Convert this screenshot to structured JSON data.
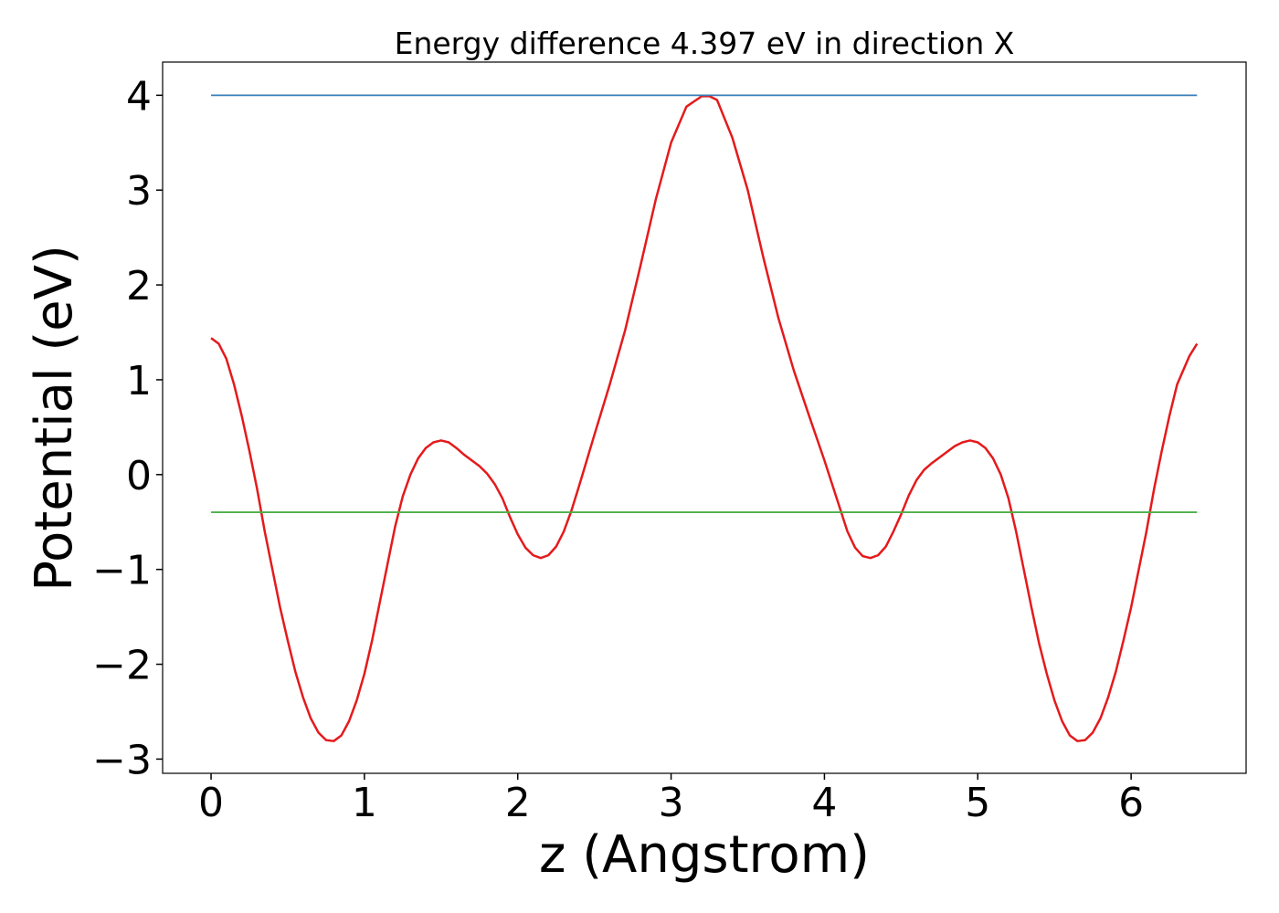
{
  "chart_data": {
    "type": "line",
    "title": "Energy difference 4.397 eV in direction X",
    "xlabel": "z (Angstrom)",
    "ylabel": "Potential (eV)",
    "xlim": [
      -0.316,
      6.75
    ],
    "ylim": [
      -3.15,
      4.35
    ],
    "xticks": [
      0,
      1,
      2,
      3,
      4,
      5,
      6
    ],
    "yticks": [
      {
        "value": -3,
        "label": "−3"
      },
      {
        "value": -2,
        "label": "−2"
      },
      {
        "value": -1,
        "label": "−1"
      },
      0,
      1,
      2,
      3,
      4
    ],
    "grid": false,
    "series": [
      {
        "color": "#e41a1c",
        "x": [
          0,
          0.05,
          0.1,
          0.15,
          0.2,
          0.25,
          0.3,
          0.35,
          0.4,
          0.45,
          0.5,
          0.55,
          0.6,
          0.65,
          0.7,
          0.75,
          0.8,
          0.85,
          0.9,
          0.95,
          1.0,
          1.05,
          1.1,
          1.15,
          1.2,
          1.25,
          1.3,
          1.35,
          1.4,
          1.45,
          1.5,
          1.55,
          1.6,
          1.65,
          1.7,
          1.75,
          1.8,
          1.85,
          1.9,
          1.95,
          2.0,
          2.05,
          2.1,
          2.15,
          2.2,
          2.25,
          2.3,
          2.35,
          2.4,
          2.5,
          2.6,
          2.7,
          2.8,
          2.9,
          3.0,
          3.1,
          3.2,
          3.25,
          3.3,
          3.4,
          3.5,
          3.6,
          3.7,
          3.8,
          3.9,
          4.0,
          4.05,
          4.1,
          4.15,
          4.2,
          4.25,
          4.3,
          4.35,
          4.4,
          4.45,
          4.5,
          4.55,
          4.6,
          4.65,
          4.7,
          4.75,
          4.8,
          4.85,
          4.9,
          4.95,
          5.0,
          5.05,
          5.1,
          5.15,
          5.2,
          5.25,
          5.3,
          5.35,
          5.4,
          5.45,
          5.5,
          5.55,
          5.6,
          5.65,
          5.7,
          5.75,
          5.8,
          5.85,
          5.9,
          5.95,
          6.0,
          6.05,
          6.1,
          6.15,
          6.2,
          6.25,
          6.3,
          6.38,
          6.43
        ],
        "values": [
          1.44,
          1.38,
          1.22,
          0.95,
          0.62,
          0.25,
          -0.15,
          -0.6,
          -1.0,
          -1.4,
          -1.75,
          -2.08,
          -2.35,
          -2.57,
          -2.72,
          -2.8,
          -2.81,
          -2.75,
          -2.6,
          -2.38,
          -2.1,
          -1.75,
          -1.35,
          -0.95,
          -0.55,
          -0.23,
          0.0,
          0.17,
          0.28,
          0.34,
          0.36,
          0.34,
          0.28,
          0.21,
          0.15,
          0.09,
          0.01,
          -0.1,
          -0.25,
          -0.45,
          -0.63,
          -0.77,
          -0.85,
          -0.88,
          -0.85,
          -0.76,
          -0.6,
          -0.38,
          -0.12,
          0.42,
          0.95,
          1.52,
          2.2,
          2.9,
          3.5,
          3.88,
          3.99,
          3.99,
          3.95,
          3.55,
          3.0,
          2.3,
          1.65,
          1.1,
          0.62,
          0.15,
          -0.1,
          -0.35,
          -0.6,
          -0.77,
          -0.86,
          -0.88,
          -0.85,
          -0.76,
          -0.6,
          -0.42,
          -0.22,
          -0.06,
          0.05,
          0.12,
          0.18,
          0.24,
          0.3,
          0.34,
          0.36,
          0.34,
          0.28,
          0.17,
          0.0,
          -0.25,
          -0.6,
          -1.0,
          -1.4,
          -1.78,
          -2.1,
          -2.38,
          -2.6,
          -2.75,
          -2.81,
          -2.8,
          -2.72,
          -2.57,
          -2.35,
          -2.08,
          -1.75,
          -1.4,
          -1.0,
          -0.6,
          -0.15,
          0.25,
          0.62,
          0.95,
          1.25,
          1.38
        ]
      },
      {
        "color": "#377eb8",
        "x": [
          0,
          6.43
        ],
        "values": [
          4.0,
          4.0
        ]
      },
      {
        "color": "#4daf4a",
        "x": [
          0,
          6.43
        ],
        "values": [
          -0.397,
          -0.397
        ]
      }
    ]
  }
}
